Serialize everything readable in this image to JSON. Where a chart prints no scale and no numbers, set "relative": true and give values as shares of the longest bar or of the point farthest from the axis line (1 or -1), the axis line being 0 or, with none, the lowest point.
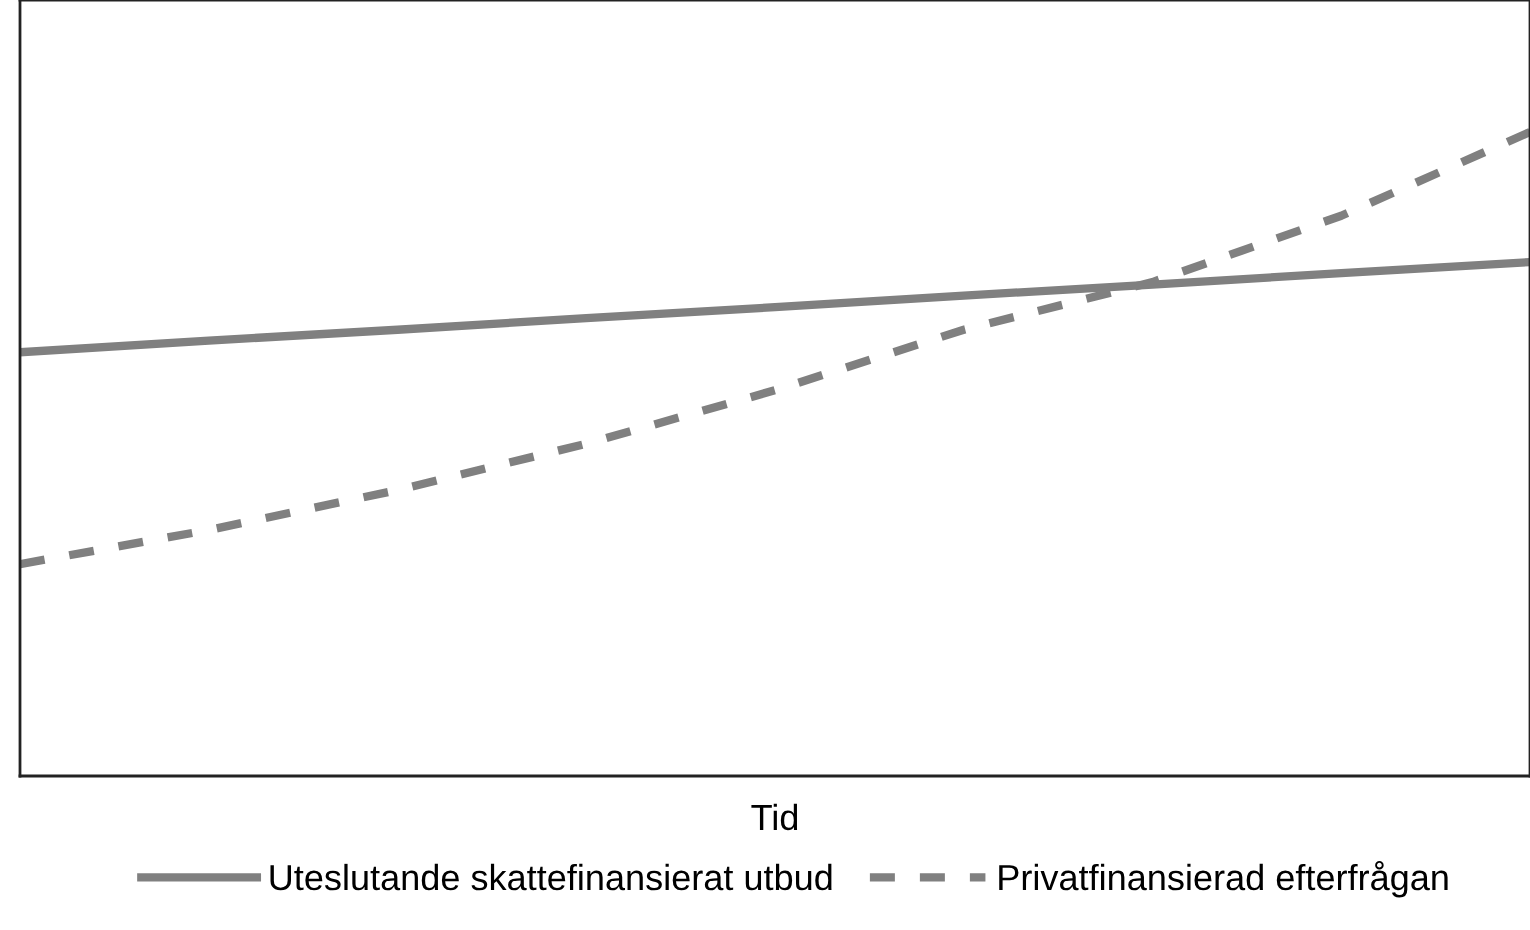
{
  "chart_data": {
    "type": "line",
    "relative": true,
    "xlabel": "Tid",
    "categories": [
      null,
      null,
      null,
      null,
      null,
      null,
      null,
      null,
      null
    ],
    "series": [
      {
        "name": "Uteslutande skattefinansierat utbud",
        "color": "#808080",
        "line_style": "solid",
        "values": [
          0.658,
          0.676,
          0.693,
          0.711,
          0.728,
          0.746,
          0.763,
          0.781,
          0.798
        ]
      },
      {
        "name": "Privatfinansierad efterfrågan",
        "color": "#808080",
        "line_style": "dashed",
        "values": [
          0.329,
          0.382,
          0.444,
          0.516,
          0.599,
          0.693,
          0.767,
          0.87,
          1
        ]
      }
    ],
    "legend": "bottom",
    "grid": false,
    "marker": "none",
    "tick_labels": false
  }
}
